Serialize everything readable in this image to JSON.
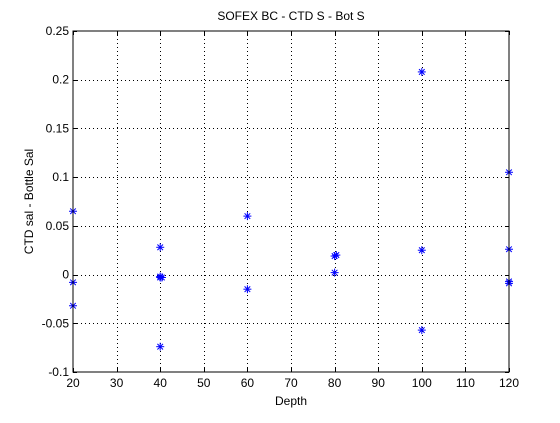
{
  "chart_data": {
    "type": "scatter",
    "title": "SOFEX BC - CTD S - Bot S",
    "xlabel": "Depth",
    "ylabel": "CTD sal - Bottle Sal",
    "xlim": [
      20,
      120
    ],
    "ylim": [
      -0.1,
      0.25
    ],
    "xticks": [
      20,
      30,
      40,
      50,
      60,
      70,
      80,
      90,
      100,
      110,
      120
    ],
    "yticks": [
      -0.1,
      -0.05,
      0,
      0.05,
      0.1,
      0.15,
      0.2,
      0.25
    ],
    "xtick_labels": [
      "20",
      "30",
      "40",
      "50",
      "60",
      "70",
      "80",
      "90",
      "100",
      "110",
      "120"
    ],
    "ytick_labels": [
      "-0.1",
      "-0.05",
      "0",
      "0.05",
      "0.1",
      "0.15",
      "0.2",
      "0.25"
    ],
    "grid": true,
    "marker": "*",
    "color": "#0000ff",
    "points": [
      {
        "x": 20,
        "y": 0.065
      },
      {
        "x": 20,
        "y": -0.008
      },
      {
        "x": 20,
        "y": -0.032
      },
      {
        "x": 40,
        "y": 0.028
      },
      {
        "x": 40,
        "y": -0.003
      },
      {
        "x": 40,
        "y": -0.002
      },
      {
        "x": 40.4,
        "y": -0.003
      },
      {
        "x": 40,
        "y": -0.074
      },
      {
        "x": 60,
        "y": 0.06
      },
      {
        "x": 60,
        "y": -0.015
      },
      {
        "x": 80,
        "y": 0.019
      },
      {
        "x": 80.4,
        "y": 0.02
      },
      {
        "x": 80,
        "y": 0.002
      },
      {
        "x": 100,
        "y": 0.208
      },
      {
        "x": 100,
        "y": 0.025
      },
      {
        "x": 100,
        "y": -0.057
      },
      {
        "x": 120,
        "y": 0.105
      },
      {
        "x": 120,
        "y": 0.026
      },
      {
        "x": 120,
        "y": -0.007
      },
      {
        "x": 120,
        "y": -0.009
      }
    ]
  }
}
